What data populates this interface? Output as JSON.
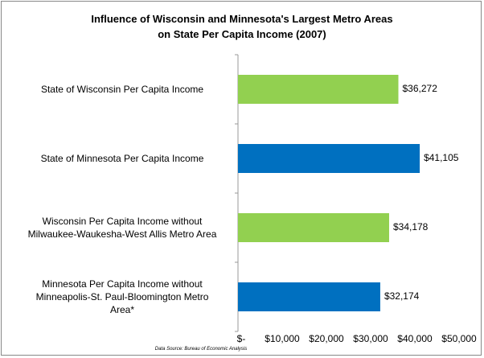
{
  "chart_data": {
    "type": "bar",
    "orientation": "horizontal",
    "title": "Influence of Wisconsin and Minnesota's Largest Metro Areas\non State Per Capita Income (2007)",
    "categories": [
      "State of Wisconsin Per Capita Income",
      "State of Minnesota Per Capita Income",
      "Wisconsin Per Capita Income without\nMilwaukee-Waukesha-West Allis Metro Area",
      "Minnesota Per Capita Income without\nMinneapolis-St. Paul-Bloomington Metro\nArea*"
    ],
    "values": [
      36272,
      41105,
      34178,
      32174
    ],
    "value_labels": [
      "$36,272",
      "$41,105",
      "$34,178",
      "$32,174"
    ],
    "colors": [
      "#92d050",
      "#0070c0",
      "#92d050",
      "#0070c0"
    ],
    "xlim": [
      0,
      50000
    ],
    "xticks": [
      {
        "value": 0,
        "label": "$-"
      },
      {
        "value": 10000,
        "label": "$10,000"
      },
      {
        "value": 20000,
        "label": "$20,000"
      },
      {
        "value": 30000,
        "label": "$30,000"
      },
      {
        "value": 40000,
        "label": "$40,000"
      },
      {
        "value": 50000,
        "label": "$50,000"
      }
    ],
    "grid": false,
    "source": "Data Source:  Bureau of Economic Analysis"
  }
}
